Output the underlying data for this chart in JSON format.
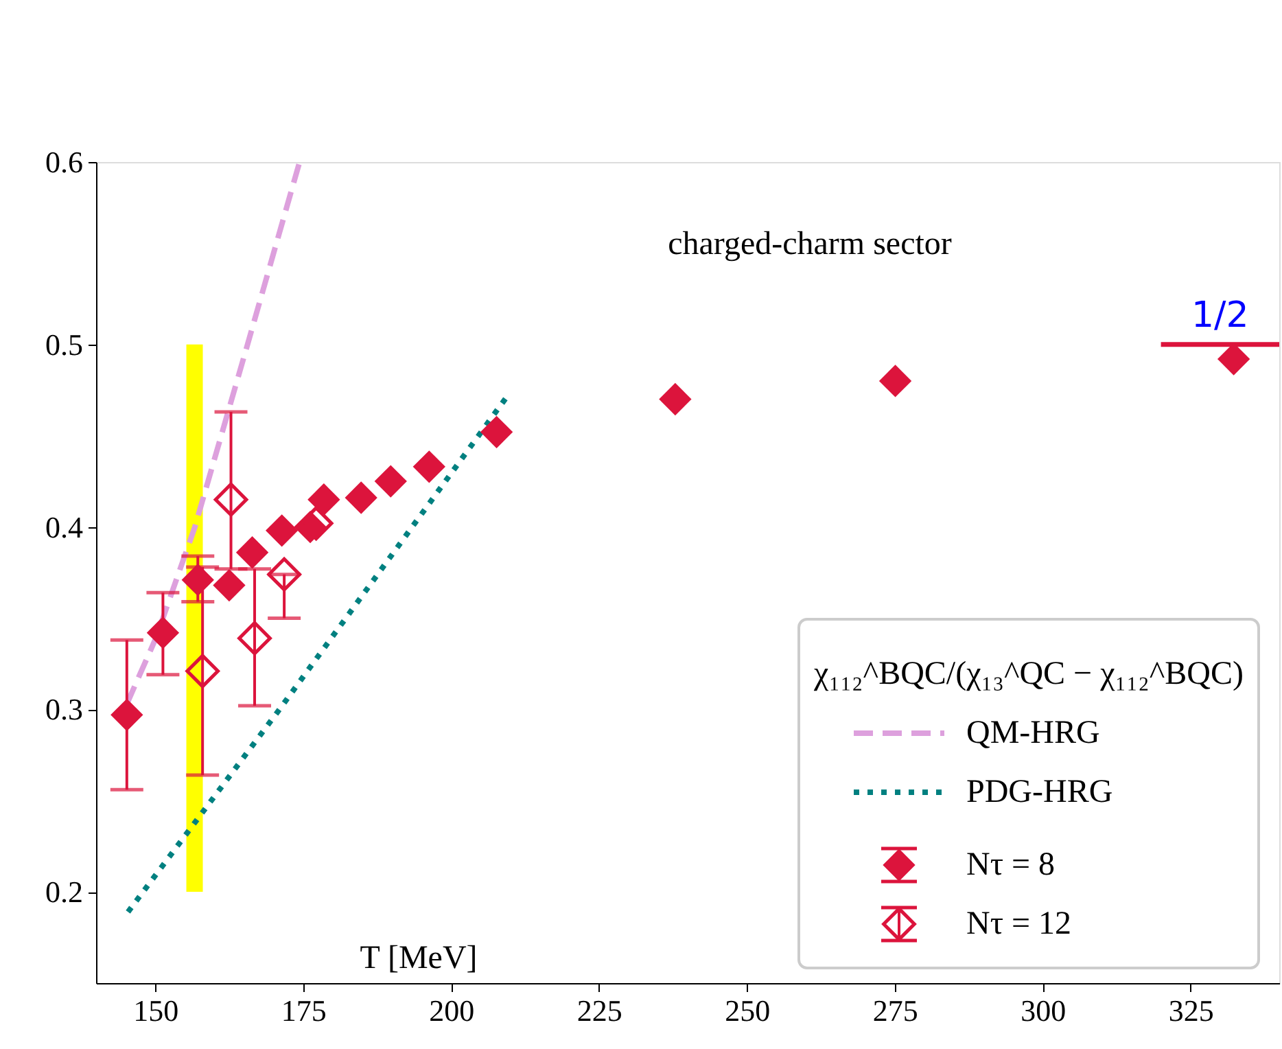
{
  "chart_data": {
    "type": "scatter",
    "xlabel": "T [MeV]",
    "legend_title": "χ₁₁₂^BQC/(χ₁₃^QC − χ₁₁₂^BQC)",
    "xlim": [
      140,
      340
    ],
    "ylim": [
      0.15,
      0.6
    ],
    "xticks": [
      150,
      175,
      200,
      225,
      250,
      275,
      300,
      325
    ],
    "yticks": [
      0.2,
      0.3,
      0.4,
      0.5,
      0.6
    ],
    "grid": false,
    "legend": "bottom right",
    "annotations": [
      "charged-charm sector",
      {
        "text": "1/2",
        "x": 330,
        "y": 0.5
      }
    ],
    "series": [
      {
        "type": "bar",
        "color": "#ffff00",
        "x": [
          156.65
        ],
        "values": [
          0.3
        ],
        "base": [
          0.2
        ]
      },
      {
        "type": "line",
        "name": "QM-HRG",
        "color": "#dda0dd",
        "line_style": "dashed",
        "marker": "none",
        "x": [
          145.2,
          150.1,
          156.7,
          165.6,
          174.4
        ],
        "values": [
          0.303,
          0.339,
          0.4,
          0.5,
          0.6
        ]
      },
      {
        "type": "line",
        "name": "PDG-HRG",
        "color": "#008080",
        "line_style": "dotted",
        "marker": "none",
        "x": [
          145.4,
          171.0,
          209.8
        ],
        "values": [
          0.189,
          0.3,
          0.473
        ]
      },
      {
        "type": "line",
        "color": "#dc143c",
        "line_style": "solid",
        "marker": "none",
        "x": [
          320,
          340
        ],
        "values": [
          0.5,
          0.5
        ]
      },
      {
        "name": "Nτ = 8",
        "color": "#dc143c",
        "marker": "diamond",
        "x": [
          145.2,
          151.3,
          157.2,
          162.5,
          166.4,
          171.4,
          176.2,
          178.5,
          184.8,
          189.8,
          196.3,
          207.7,
          237.9,
          275.1,
          332.3
        ],
        "values": [
          0.297,
          0.342,
          0.371,
          0.368,
          0.386,
          0.398,
          0.4,
          0.415,
          0.416,
          0.425,
          0.433,
          0.452,
          0.47,
          0.48,
          0.492
        ],
        "errors": [
          [
            0.256,
            0.338
          ],
          [
            0.319,
            0.364
          ],
          [
            0.359,
            0.384
          ],
          null,
          null,
          null,
          null,
          null,
          null,
          null,
          null,
          null,
          null,
          null,
          null
        ]
      },
      {
        "name": "Nτ = 12",
        "color": "#dc143c",
        "marker": "diamond",
        "x": [
          158.0,
          162.8,
          166.8,
          171.8,
          177.2
        ],
        "values": [
          0.321,
          0.415,
          0.339,
          0.374,
          0.402
        ],
        "errors": [
          [
            0.264,
            0.378
          ],
          [
            0.377,
            0.463
          ],
          [
            0.302,
            0.377
          ],
          [
            0.35,
            0.374
          ],
          null
        ]
      }
    ]
  }
}
